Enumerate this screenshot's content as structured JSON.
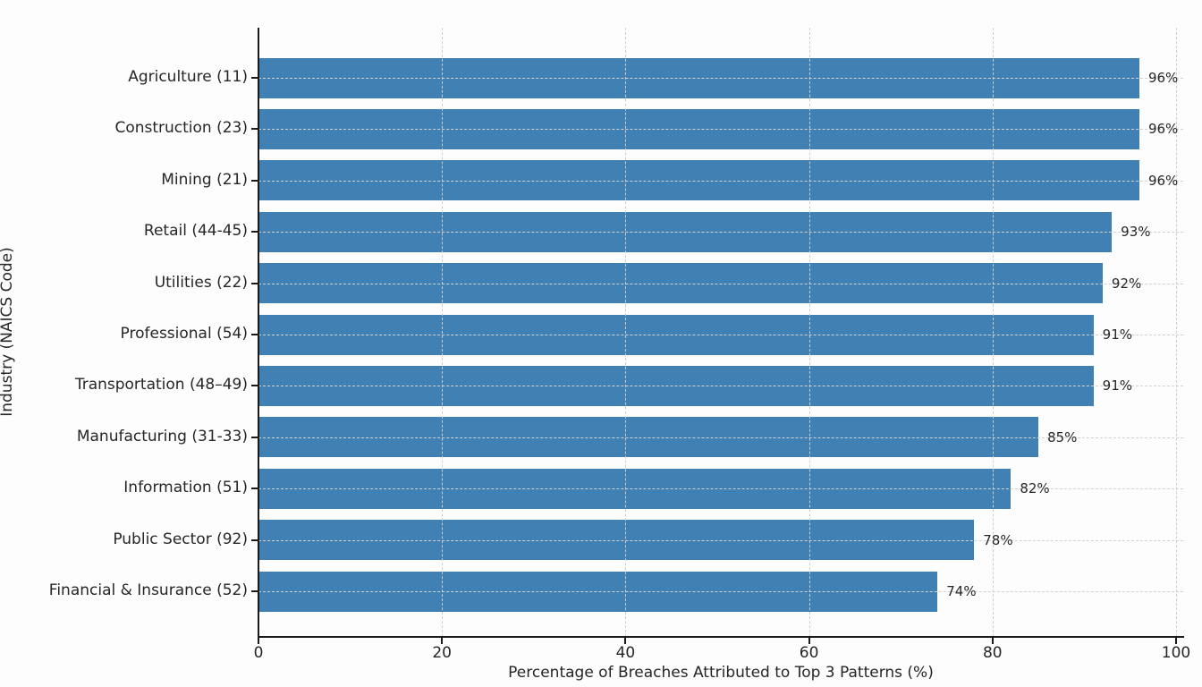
{
  "chart_data": {
    "type": "bar",
    "orientation": "horizontal",
    "title": "",
    "xlabel": "Percentage of Breaches Attributed to Top 3 Patterns (%)",
    "ylabel": "Industry (NAICS Code)",
    "xlim": [
      0,
      100
    ],
    "x_ticks": [
      "0",
      "20",
      "40",
      "60",
      "80",
      "100"
    ],
    "x_tick_values": [
      0,
      20,
      40,
      60,
      80,
      100
    ],
    "grid": "dashed-both-axes",
    "legend": "none",
    "bar_color": "#4080b2",
    "background_color": "#fdfdfd",
    "categories": [
      "Agriculture (11)",
      "Construction (23)",
      "Mining (21)",
      "Retail (44-45)",
      "Utilities (22)",
      "Professional (54)",
      "Transportation (48–49)",
      "Manufacturing (31-33)",
      "Information (51)",
      "Public Sector (92)",
      "Financial & Insurance (52)"
    ],
    "values": [
      96,
      96,
      96,
      93,
      92,
      91,
      91,
      85,
      82,
      78,
      74
    ],
    "value_labels": [
      "96%",
      "96%",
      "96%",
      "93%",
      "92%",
      "91%",
      "91%",
      "85%",
      "82%",
      "78%",
      "74%"
    ]
  }
}
